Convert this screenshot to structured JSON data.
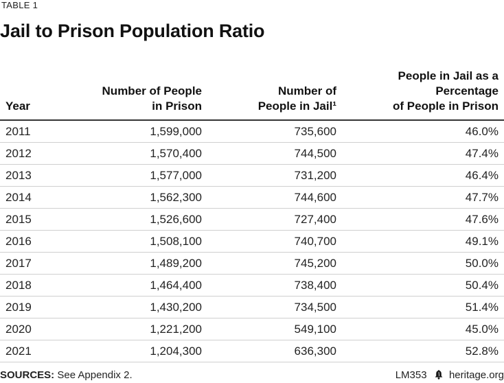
{
  "header": {
    "label": "TABLE 1",
    "title": "Jail to Prison Population Ratio"
  },
  "table": {
    "columns": [
      {
        "line1": "",
        "line2": "Year"
      },
      {
        "line1": "Number of People",
        "line2": "in Prison"
      },
      {
        "line1": "Number of",
        "line2": "People in Jail¹"
      },
      {
        "line1": "People in Jail as a Percentage",
        "line2": "of People in Prison"
      }
    ],
    "rows": [
      {
        "year": "2011",
        "prison": "1,599,000",
        "jail": "735,600",
        "pct": "46.0%"
      },
      {
        "year": "2012",
        "prison": "1,570,400",
        "jail": "744,500",
        "pct": "47.4%"
      },
      {
        "year": "2013",
        "prison": "1,577,000",
        "jail": "731,200",
        "pct": "46.4%"
      },
      {
        "year": "2014",
        "prison": "1,562,300",
        "jail": "744,600",
        "pct": "47.7%"
      },
      {
        "year": "2015",
        "prison": "1,526,600",
        "jail": "727,400",
        "pct": "47.6%"
      },
      {
        "year": "2016",
        "prison": "1,508,100",
        "jail": "740,700",
        "pct": "49.1%"
      },
      {
        "year": "2017",
        "prison": "1,489,200",
        "jail": "745,200",
        "pct": "50.0%"
      },
      {
        "year": "2018",
        "prison": "1,464,400",
        "jail": "738,400",
        "pct": "50.4%"
      },
      {
        "year": "2019",
        "prison": "1,430,200",
        "jail": "734,500",
        "pct": "51.4%"
      },
      {
        "year": "2020",
        "prison": "1,221,200",
        "jail": "549,100",
        "pct": "45.0%"
      },
      {
        "year": "2021",
        "prison": "1,204,300",
        "jail": "636,300",
        "pct": "52.8%"
      }
    ]
  },
  "footer": {
    "sources_label": "SOURCES:",
    "sources_text": " See Appendix 2.",
    "report_id": "LM353",
    "brand_icon": "liberty-bell-icon",
    "site": "heritage.org"
  }
}
